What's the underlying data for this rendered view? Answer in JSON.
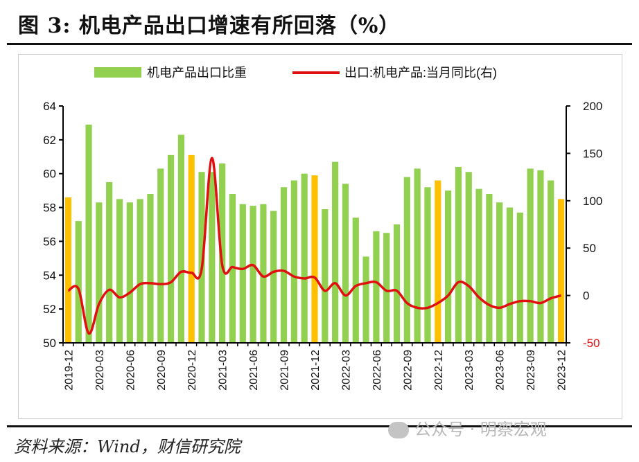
{
  "title": "图 3:  机电产品出口增速有所回落（%）",
  "source": "资料来源：Wind，财信研究院",
  "watermark": "公众号 · 明察宏观",
  "icons": {
    "watermark": "wechat-icon"
  },
  "colors": {
    "bar_green": "#92d050",
    "bar_yellow": "#ffc000",
    "line_red": "#e01010"
  },
  "chart_data": {
    "type": "bar",
    "categories": [
      "2019-12",
      "2020-01",
      "2020-02",
      "2020-03",
      "2020-04",
      "2020-05",
      "2020-06",
      "2020-07",
      "2020-08",
      "2020-09",
      "2020-10",
      "2020-11",
      "2020-12",
      "2021-01",
      "2021-02",
      "2021-03",
      "2021-04",
      "2021-05",
      "2021-06",
      "2021-07",
      "2021-08",
      "2021-09",
      "2021-10",
      "2021-11",
      "2021-12",
      "2022-01",
      "2022-02",
      "2022-03",
      "2022-04",
      "2022-05",
      "2022-06",
      "2022-07",
      "2022-08",
      "2022-09",
      "2022-10",
      "2022-11",
      "2022-12",
      "2023-01",
      "2023-02",
      "2023-03",
      "2023-04",
      "2023-05",
      "2023-06",
      "2023-07",
      "2023-08",
      "2023-09",
      "2023-10",
      "2023-11",
      "2023-12"
    ],
    "xtick_labels": [
      "2019-12",
      "2020-03",
      "2020-06",
      "2020-09",
      "2020-12",
      "2021-03",
      "2021-06",
      "2021-09",
      "2021-12",
      "2022-03",
      "2022-06",
      "2022-09",
      "2022-12",
      "2023-03",
      "2023-06",
      "2023-09",
      "2023-12"
    ],
    "series": [
      {
        "name": "机电产品出口比重",
        "type": "bar",
        "axis": "left",
        "values": [
          58.6,
          57.2,
          62.9,
          58.3,
          59.5,
          58.5,
          58.3,
          58.5,
          58.8,
          60.3,
          61.1,
          62.3,
          61.1,
          60.1,
          60.1,
          60.6,
          58.8,
          58.2,
          58.1,
          58.2,
          57.8,
          59.2,
          59.6,
          60.0,
          59.9,
          57.9,
          60.7,
          59.4,
          57.4,
          55.1,
          56.6,
          56.5,
          57.0,
          59.8,
          60.3,
          59.2,
          59.6,
          59.0,
          60.4,
          60.1,
          59.1,
          58.8,
          58.3,
          58.0,
          57.7,
          60.3,
          60.2,
          59.6,
          58.5
        ],
        "highlight_categories": [
          "2019-12",
          "2020-12",
          "2021-12",
          "2022-12",
          "2023-12"
        ]
      },
      {
        "name": "出口:机电产品:当月同比(右)",
        "type": "line",
        "axis": "right",
        "values": [
          5,
          7,
          -40,
          -9,
          6,
          -2,
          3,
          12,
          13,
          12,
          14,
          25,
          24,
          28,
          145,
          32,
          30,
          28,
          32,
          20,
          25,
          26,
          20,
          18,
          19,
          5,
          13,
          0,
          10,
          13,
          14,
          5,
          5,
          -8,
          -13,
          -13,
          -8,
          0,
          14,
          10,
          -2,
          -10,
          -13,
          -9,
          -6,
          -6,
          -8,
          -3,
          0
        ]
      }
    ],
    "y_left": {
      "ticks": [
        50,
        52,
        54,
        56,
        58,
        60,
        62,
        64
      ],
      "range": [
        50,
        64
      ]
    },
    "y_right": {
      "ticks": [
        -50,
        0,
        50,
        100,
        150,
        200
      ],
      "range": [
        -50,
        200
      ]
    },
    "grid": false,
    "legend_position": "top-center"
  }
}
